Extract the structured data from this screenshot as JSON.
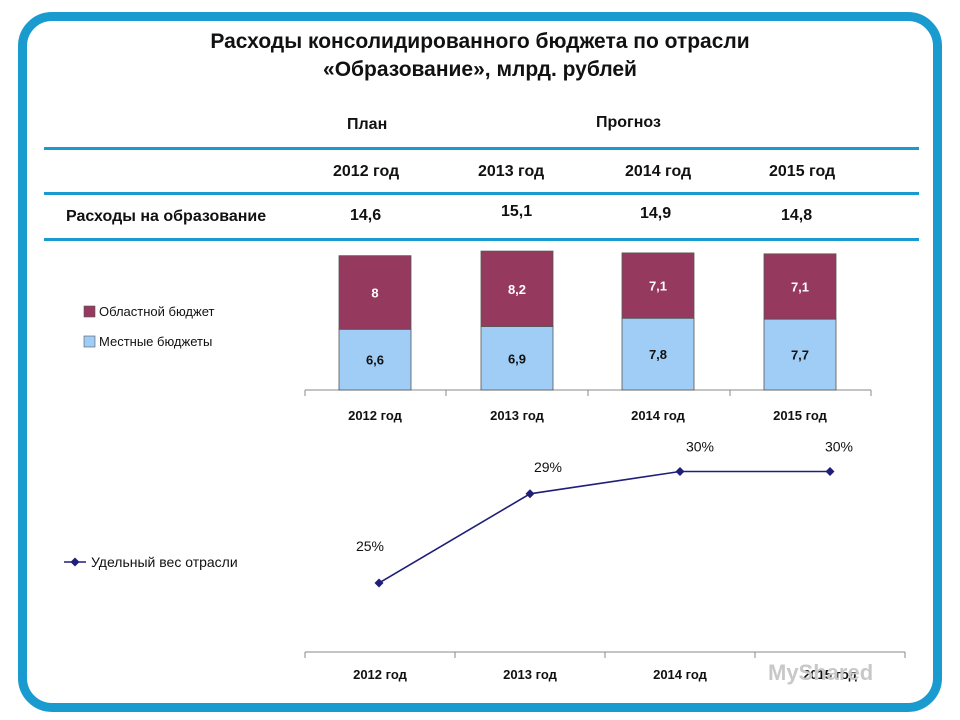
{
  "title_line1": "Расходы консолидированного бюджета по отрасли",
  "title_line2": "«Образование», млрд. рублей",
  "table": {
    "plan_label": "План",
    "forecast_label": "Прогноз",
    "years": [
      "2012 год",
      "2013 год",
      "2014 год",
      "2015 год"
    ],
    "row_label": "Расходы на образование",
    "row_values": [
      "14,6",
      "15,1",
      "14,9",
      "14,8"
    ]
  },
  "watermark": "MyShared",
  "colors": {
    "frame": "#1a9bd0",
    "regional": "#953a5e",
    "local": "#9fcdf6",
    "line": "#1f1f7a"
  },
  "chart_data": [
    {
      "type": "bar",
      "stacked": true,
      "categories": [
        "2012 год",
        "2013 год",
        "2014 год",
        "2015 год"
      ],
      "series": [
        {
          "name": "Местные бюджеты",
          "values": [
            6.6,
            6.9,
            7.8,
            7.7
          ],
          "labels": [
            "6,6",
            "6,9",
            "7,8",
            "7,7"
          ]
        },
        {
          "name": "Областной бюджет",
          "values": [
            8,
            8.2,
            7.1,
            7.1
          ],
          "labels": [
            "8",
            "8,2",
            "7,1",
            "7,1"
          ]
        }
      ],
      "legend_position": "left"
    },
    {
      "type": "line",
      "categories": [
        "2012 год",
        "2013 год",
        "2014 год",
        "2015 год"
      ],
      "series": [
        {
          "name": "Удельный вес отрасли",
          "values": [
            25,
            29,
            30,
            30
          ],
          "labels": [
            "25%",
            "29%",
            "30%",
            "30%"
          ]
        }
      ],
      "legend_position": "left"
    }
  ]
}
